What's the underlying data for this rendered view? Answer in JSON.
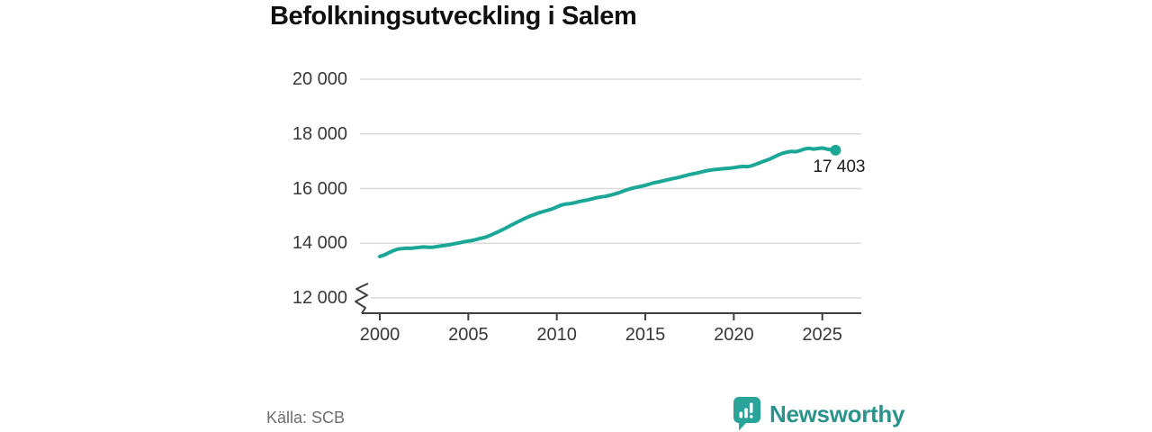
{
  "title": "Befolkningsutveckling i Salem",
  "footer": {
    "source": "Källa: SCB",
    "brand": "Newsworthy"
  },
  "colors": {
    "line": "#1aa798",
    "grid": "#dadada",
    "axis": "#3f3f3f",
    "tick_label": "#383838",
    "title": "#101010",
    "source_text": "#6e6e6e",
    "end_label_text": "#1d1d1d",
    "brand_badge": "#2aa39a",
    "brand_wordmark": "#2a938c",
    "background": "#ffffff"
  },
  "chart_data": {
    "type": "line",
    "title": "Befolkningsutveckling i Salem",
    "xlabel": "",
    "ylabel": "",
    "grid": "horizontal",
    "axis_break": true,
    "legend": "none",
    "x_ticks": [
      {
        "value": 2000,
        "label": "2000"
      },
      {
        "value": 2005,
        "label": "2005"
      },
      {
        "value": 2010,
        "label": "2010"
      },
      {
        "value": 2015,
        "label": "2015"
      },
      {
        "value": 2020,
        "label": "2020"
      },
      {
        "value": 2025,
        "label": "2025"
      }
    ],
    "y_ticks": [
      {
        "value": 12000,
        "label": "12 000"
      },
      {
        "value": 14000,
        "label": "14 000"
      },
      {
        "value": 16000,
        "label": "16 000"
      },
      {
        "value": 18000,
        "label": "18 000"
      },
      {
        "value": 20000,
        "label": "20 000"
      }
    ],
    "xlim": [
      1998.9,
      2027.2
    ],
    "ylim": [
      12000,
      20000
    ],
    "end_point": {
      "x": 2025.75,
      "y": 17403,
      "label": "17 403"
    },
    "series": [
      {
        "name": "Befolkning",
        "color": "#1aa798",
        "points": [
          [
            2000.0,
            13515
          ],
          [
            2000.25,
            13570
          ],
          [
            2000.5,
            13650
          ],
          [
            2000.75,
            13725
          ],
          [
            2001.0,
            13780
          ],
          [
            2001.25,
            13805
          ],
          [
            2001.5,
            13820
          ],
          [
            2001.75,
            13815
          ],
          [
            2002.0,
            13830
          ],
          [
            2002.25,
            13850
          ],
          [
            2002.5,
            13865
          ],
          [
            2002.75,
            13850
          ],
          [
            2003.0,
            13855
          ],
          [
            2003.25,
            13880
          ],
          [
            2003.5,
            13905
          ],
          [
            2003.75,
            13925
          ],
          [
            2004.0,
            13955
          ],
          [
            2004.25,
            13985
          ],
          [
            2004.5,
            14015
          ],
          [
            2004.75,
            14050
          ],
          [
            2005.0,
            14080
          ],
          [
            2005.25,
            14105
          ],
          [
            2005.5,
            14145
          ],
          [
            2005.75,
            14185
          ],
          [
            2006.0,
            14225
          ],
          [
            2006.25,
            14290
          ],
          [
            2006.5,
            14365
          ],
          [
            2006.75,
            14440
          ],
          [
            2007.0,
            14515
          ],
          [
            2007.25,
            14600
          ],
          [
            2007.5,
            14685
          ],
          [
            2007.75,
            14765
          ],
          [
            2008.0,
            14845
          ],
          [
            2008.25,
            14925
          ],
          [
            2008.5,
            14995
          ],
          [
            2008.75,
            15055
          ],
          [
            2009.0,
            15115
          ],
          [
            2009.25,
            15160
          ],
          [
            2009.5,
            15205
          ],
          [
            2009.75,
            15255
          ],
          [
            2010.0,
            15330
          ],
          [
            2010.25,
            15395
          ],
          [
            2010.5,
            15435
          ],
          [
            2010.75,
            15450
          ],
          [
            2011.0,
            15480
          ],
          [
            2011.25,
            15520
          ],
          [
            2011.5,
            15555
          ],
          [
            2011.75,
            15585
          ],
          [
            2012.0,
            15625
          ],
          [
            2012.25,
            15665
          ],
          [
            2012.5,
            15695
          ],
          [
            2012.75,
            15715
          ],
          [
            2013.0,
            15755
          ],
          [
            2013.25,
            15795
          ],
          [
            2013.5,
            15845
          ],
          [
            2013.75,
            15905
          ],
          [
            2014.0,
            15960
          ],
          [
            2014.25,
            16010
          ],
          [
            2014.5,
            16045
          ],
          [
            2014.75,
            16080
          ],
          [
            2015.0,
            16120
          ],
          [
            2015.25,
            16165
          ],
          [
            2015.5,
            16215
          ],
          [
            2015.75,
            16245
          ],
          [
            2016.0,
            16280
          ],
          [
            2016.25,
            16320
          ],
          [
            2016.5,
            16355
          ],
          [
            2016.75,
            16390
          ],
          [
            2017.0,
            16425
          ],
          [
            2017.25,
            16470
          ],
          [
            2017.5,
            16515
          ],
          [
            2017.75,
            16545
          ],
          [
            2018.0,
            16580
          ],
          [
            2018.25,
            16620
          ],
          [
            2018.5,
            16655
          ],
          [
            2018.75,
            16680
          ],
          [
            2019.0,
            16700
          ],
          [
            2019.25,
            16715
          ],
          [
            2019.5,
            16730
          ],
          [
            2019.75,
            16745
          ],
          [
            2020.0,
            16765
          ],
          [
            2020.25,
            16790
          ],
          [
            2020.5,
            16810
          ],
          [
            2020.75,
            16800
          ],
          [
            2021.0,
            16830
          ],
          [
            2021.25,
            16890
          ],
          [
            2021.5,
            16950
          ],
          [
            2021.75,
            17010
          ],
          [
            2022.0,
            17070
          ],
          [
            2022.25,
            17145
          ],
          [
            2022.5,
            17225
          ],
          [
            2022.75,
            17290
          ],
          [
            2023.0,
            17330
          ],
          [
            2023.25,
            17360
          ],
          [
            2023.5,
            17345
          ],
          [
            2023.75,
            17390
          ],
          [
            2024.0,
            17450
          ],
          [
            2024.25,
            17470
          ],
          [
            2024.5,
            17445
          ],
          [
            2024.75,
            17465
          ],
          [
            2025.0,
            17480
          ],
          [
            2025.25,
            17445
          ],
          [
            2025.5,
            17420
          ],
          [
            2025.75,
            17403
          ]
        ]
      }
    ]
  }
}
